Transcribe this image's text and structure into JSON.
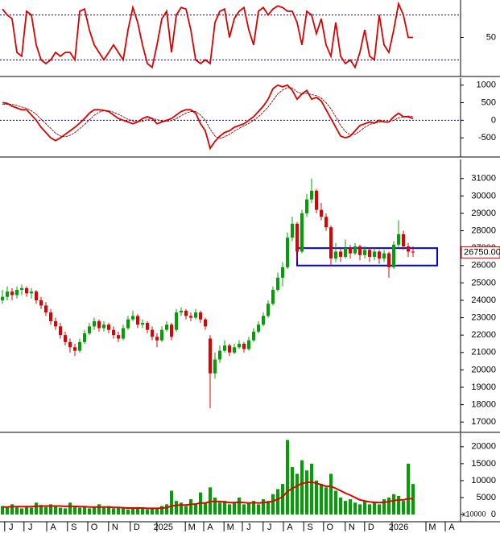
{
  "chart_data": [
    {
      "type": "line",
      "xlim": [
        -0.5,
        94.83
      ],
      "ylim": [
        0,
        100
      ],
      "yticks": [
        50
      ],
      "hlines": [
        20,
        80
      ],
      "series": [
        {
          "color": "#dd0000",
          "values": [
            88,
            80,
            75,
            30,
            25,
            85,
            80,
            40,
            20,
            15,
            20,
            30,
            25,
            30,
            30,
            20,
            85,
            88,
            60,
            40,
            30,
            20,
            30,
            40,
            30,
            20,
            60,
            90,
            70,
            40,
            15,
            10,
            40,
            75,
            85,
            30,
            80,
            90,
            88,
            60,
            20,
            15,
            20,
            15,
            70,
            85,
            88,
            50,
            75,
            85,
            90,
            60,
            40,
            85,
            90,
            80,
            88,
            92,
            90,
            85,
            85,
            70,
            40,
            85,
            80,
            55,
            75,
            40,
            25,
            70,
            25,
            15,
            20,
            10,
            30,
            60,
            25,
            20,
            80,
            40,
            30,
            60,
            95,
            80,
            50,
            50
          ]
        }
      ]
    },
    {
      "type": "line",
      "xlim": [
        -0.5,
        94.83
      ],
      "ylim": [
        -1000,
        1200
      ],
      "yticks": [
        -500,
        0,
        500,
        1000
      ],
      "hlines": [
        0
      ],
      "series": [
        {
          "color": "#dd0000",
          "values": [
            500,
            480,
            400,
            350,
            300,
            300,
            150,
            0,
            -200,
            -350,
            -500,
            -580,
            -500,
            -400,
            -300,
            -200,
            -80,
            50,
            200,
            300,
            300,
            280,
            250,
            150,
            50,
            0,
            -50,
            -100,
            -50,
            50,
            100,
            50,
            -100,
            -50,
            0,
            50,
            150,
            250,
            300,
            300,
            200,
            -100,
            -300,
            -800,
            -600,
            -450,
            -350,
            -300,
            -200,
            -150,
            -100,
            0,
            100,
            250,
            400,
            600,
            900,
            1000,
            950,
            1000,
            850,
            600,
            750,
            850,
            600,
            650,
            550,
            300,
            50,
            -200,
            -450,
            -500,
            -450,
            -300,
            -150,
            -100,
            -50,
            -80,
            0,
            -50,
            -50,
            100,
            200,
            100,
            100,
            50
          ]
        },
        {
          "color": "#990000",
          "values": [
            450,
            460,
            450,
            420,
            380,
            340,
            270,
            170,
            30,
            -100,
            -230,
            -370,
            -450,
            -470,
            -430,
            -350,
            -240,
            -120,
            10,
            140,
            230,
            270,
            270,
            230,
            170,
            100,
            30,
            -20,
            -40,
            -30,
            20,
            50,
            20,
            -20,
            -30,
            -10,
            50,
            130,
            200,
            250,
            250,
            150,
            0,
            -250,
            -450,
            -520,
            -470,
            -400,
            -310,
            -230,
            -160,
            -90,
            0,
            100,
            230,
            380,
            560,
            750,
            860,
            930,
            920,
            810,
            750,
            770,
            730,
            700,
            630,
            500,
            330,
            100,
            -150,
            -320,
            -420,
            -400,
            -310,
            -200,
            -120,
            -80,
            -50,
            -40,
            -40,
            0,
            70,
            100,
            120,
            100
          ]
        }
      ]
    },
    {
      "type": "candlestick",
      "xlim": [
        -0.5,
        94.83
      ],
      "ylim": [
        16500,
        32100
      ],
      "yticks": [
        17000,
        18000,
        19000,
        20000,
        21000,
        22000,
        23000,
        24000,
        25000,
        26000,
        27000,
        28000,
        29000,
        30000,
        31000
      ],
      "up_color": "#00a000",
      "down_color": "#e00000",
      "ohlc": [
        [
          24000,
          24600,
          23800,
          24200
        ],
        [
          24200,
          24800,
          24000,
          24500
        ],
        [
          24500,
          24700,
          24000,
          24300
        ],
        [
          24300,
          24800,
          24100,
          24600
        ],
        [
          24600,
          24900,
          24300,
          24700
        ],
        [
          24700,
          24800,
          24200,
          24400
        ],
        [
          24400,
          24700,
          24100,
          24500
        ],
        [
          24500,
          24600,
          23800,
          24000
        ],
        [
          24000,
          24200,
          23500,
          23700
        ],
        [
          23700,
          23900,
          23100,
          23300
        ],
        [
          23300,
          23500,
          22600,
          22800
        ],
        [
          22800,
          23000,
          22300,
          22500
        ],
        [
          22500,
          22700,
          21800,
          22000
        ],
        [
          22000,
          22200,
          21400,
          21600
        ],
        [
          21600,
          21800,
          21000,
          21300
        ],
        [
          21300,
          21500,
          20800,
          21100
        ],
        [
          21100,
          21800,
          21000,
          21600
        ],
        [
          21600,
          22300,
          21500,
          22100
        ],
        [
          22100,
          22700,
          22000,
          22500
        ],
        [
          22500,
          23000,
          22300,
          22800
        ],
        [
          22800,
          22900,
          22200,
          22400
        ],
        [
          22400,
          22800,
          22200,
          22600
        ],
        [
          22600,
          22700,
          22100,
          22300
        ],
        [
          22300,
          22500,
          21800,
          22000
        ],
        [
          22000,
          22200,
          21600,
          21800
        ],
        [
          21800,
          22600,
          21700,
          22400
        ],
        [
          22400,
          23100,
          22300,
          22900
        ],
        [
          22900,
          23400,
          22800,
          23100
        ],
        [
          23100,
          23200,
          22400,
          22600
        ],
        [
          22600,
          22900,
          22400,
          22700
        ],
        [
          22700,
          22800,
          22100,
          22300
        ],
        [
          22300,
          22500,
          21700,
          21900
        ],
        [
          21900,
          22100,
          21300,
          21700
        ],
        [
          21700,
          22500,
          21600,
          22300
        ],
        [
          22300,
          22800,
          22200,
          22600
        ],
        [
          22600,
          22700,
          21700,
          21900
        ],
        [
          22300,
          23500,
          22200,
          23300
        ],
        [
          23300,
          23600,
          23100,
          23400
        ],
        [
          23400,
          23500,
          22900,
          23100
        ],
        [
          23100,
          23300,
          22800,
          23000
        ],
        [
          23000,
          23500,
          22900,
          23300
        ],
        [
          23300,
          23400,
          22700,
          22900
        ],
        [
          22900,
          23000,
          22300,
          22500
        ],
        [
          21800,
          22000,
          17800,
          19800
        ],
        [
          19800,
          21000,
          19500,
          20600
        ],
        [
          20600,
          21400,
          20400,
          21100
        ],
        [
          21100,
          21700,
          21000,
          21400
        ],
        [
          21400,
          21500,
          20800,
          21000
        ],
        [
          21000,
          21500,
          20900,
          21300
        ],
        [
          21300,
          21700,
          21200,
          21500
        ],
        [
          21500,
          21600,
          21000,
          21200
        ],
        [
          21200,
          21900,
          21100,
          21700
        ],
        [
          21700,
          22400,
          21600,
          22200
        ],
        [
          22200,
          22800,
          22100,
          22600
        ],
        [
          22600,
          23300,
          22500,
          23100
        ],
        [
          23100,
          24000,
          23000,
          23800
        ],
        [
          23800,
          24800,
          23700,
          24600
        ],
        [
          24600,
          25600,
          24500,
          25300
        ],
        [
          25300,
          26200,
          24800,
          25900
        ],
        [
          25900,
          27900,
          25800,
          27600
        ],
        [
          27600,
          28800,
          27400,
          28400
        ],
        [
          28400,
          28500,
          26200,
          26800
        ],
        [
          26800,
          29200,
          26700,
          29000
        ],
        [
          29000,
          30100,
          28800,
          29800
        ],
        [
          29800,
          31000,
          29600,
          30300
        ],
        [
          30300,
          30400,
          29000,
          29200
        ],
        [
          29200,
          29600,
          28600,
          28800
        ],
        [
          28800,
          29000,
          28000,
          28200
        ],
        [
          28200,
          28300,
          26000,
          26400
        ],
        [
          26400,
          27300,
          26200,
          26800
        ],
        [
          26800,
          27000,
          26200,
          26500
        ],
        [
          26500,
          27500,
          26400,
          27000
        ],
        [
          27000,
          27200,
          26400,
          26700
        ],
        [
          26700,
          27300,
          26600,
          27100
        ],
        [
          27100,
          27200,
          26300,
          26600
        ],
        [
          26600,
          27100,
          26400,
          26900
        ],
        [
          26900,
          27000,
          26200,
          26500
        ],
        [
          26500,
          27000,
          26300,
          26800
        ],
        [
          26800,
          26900,
          26100,
          26400
        ],
        [
          26400,
          26900,
          26200,
          26700
        ],
        [
          26700,
          26800,
          25300,
          25900
        ],
        [
          25900,
          27400,
          25800,
          27200
        ],
        [
          27200,
          28600,
          27000,
          27800
        ],
        [
          27800,
          28000,
          26900,
          27100
        ],
        [
          27100,
          27300,
          26500,
          26800
        ],
        [
          26800,
          27100,
          26500,
          26750
        ]
      ],
      "zone": {
        "x": [
          61,
          90
        ],
        "y": [
          26000,
          27000
        ],
        "color": "#0000cc"
      },
      "last": {
        "value": 26750,
        "label": "26750.00",
        "color": "#e00000"
      }
    },
    {
      "type": "bar",
      "xlim": [
        -0.5,
        94.83
      ],
      "ylim": [
        0,
        24000
      ],
      "yticks": [
        0,
        5000,
        10000,
        15000,
        20000
      ],
      "y_unit_label": "x10000",
      "xticks": [
        {
          "value": 1.8,
          "label": "J"
        },
        {
          "value": 5.8,
          "label": "J"
        },
        {
          "value": 10.5,
          "label": "A"
        },
        {
          "value": 14.8,
          "label": "S"
        },
        {
          "value": 19,
          "label": "O"
        },
        {
          "value": 23.3,
          "label": "N"
        },
        {
          "value": 27.8,
          "label": "D"
        },
        {
          "value": 33.3,
          "label": "2025"
        },
        {
          "value": 39.2,
          "label": "M"
        },
        {
          "value": 43,
          "label": "A"
        },
        {
          "value": 47.2,
          "label": "M"
        },
        {
          "value": 51,
          "label": "J"
        },
        {
          "value": 55.3,
          "label": "J"
        },
        {
          "value": 59.5,
          "label": "A"
        },
        {
          "value": 63.7,
          "label": "S"
        },
        {
          "value": 67.8,
          "label": "O"
        },
        {
          "value": 72.3,
          "label": "N"
        },
        {
          "value": 76.3,
          "label": "D"
        },
        {
          "value": 82,
          "label": "2026"
        },
        {
          "value": 89,
          "label": "M"
        },
        {
          "value": 93,
          "label": "A"
        }
      ],
      "color": "#00a000",
      "values": [
        2500,
        2000,
        3000,
        2200,
        1800,
        2500,
        2000,
        3500,
        2800,
        2200,
        3000,
        2500,
        2000,
        1800,
        3500,
        2200,
        2000,
        2500,
        1800,
        2200,
        3000,
        2000,
        2500,
        1800,
        2200,
        2000,
        1500,
        1800,
        2200,
        2000,
        1500,
        1800,
        2000,
        2500,
        3000,
        7000,
        4000,
        3500,
        2500,
        4500,
        3000,
        6500,
        3500,
        8000,
        5000,
        3500,
        4000,
        3000,
        3500,
        5000,
        3000,
        3500,
        4000,
        3000,
        4500,
        4000,
        6000,
        7500,
        9000,
        22000,
        14000,
        12000,
        16000,
        13000,
        15000,
        10000,
        9000,
        8000,
        12000,
        7000,
        5000,
        4000,
        4500,
        3500,
        3000,
        4000,
        3000,
        3500,
        3000,
        4500,
        5000,
        6000,
        5500,
        4000,
        15000,
        9000
      ],
      "ma": {
        "color": "#dd0000",
        "values": [
          2200,
          2200,
          2300,
          2300,
          2300,
          2300,
          2300,
          2400,
          2500,
          2500,
          2500,
          2500,
          2500,
          2400,
          2400,
          2400,
          2300,
          2300,
          2200,
          2200,
          2200,
          2200,
          2200,
          2100,
          2100,
          2000,
          1900,
          1900,
          1900,
          1900,
          1800,
          1800,
          1800,
          1900,
          2000,
          2500,
          2700,
          2800,
          2800,
          3000,
          3100,
          3400,
          3400,
          3800,
          3900,
          3800,
          3700,
          3500,
          3500,
          3600,
          3500,
          3400,
          3500,
          3400,
          3500,
          3600,
          3900,
          4500,
          5200,
          6800,
          7700,
          8400,
          9200,
          9400,
          9600,
          9200,
          8800,
          8300,
          8300,
          7700,
          7000,
          6300,
          5700,
          5000,
          4300,
          4000,
          3700,
          3600,
          3500,
          3600,
          3800,
          4100,
          4300,
          4300,
          4700,
          4600
        ]
      }
    }
  ]
}
